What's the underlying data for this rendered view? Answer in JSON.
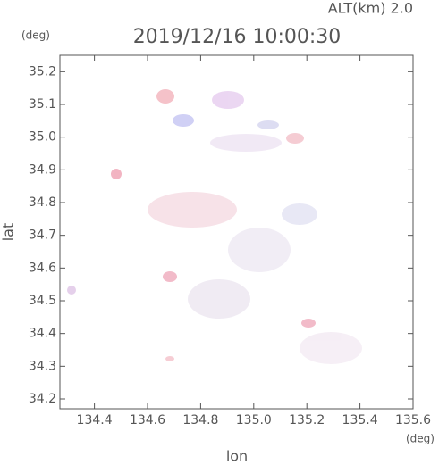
{
  "chart_data": {
    "type": "map",
    "title": "2019/12/16 10:00:30",
    "subtitle": "ALT(km) 2.0",
    "x_label": "lon",
    "x_unit": "(deg)",
    "y_label": "lat",
    "y_unit": "(deg)",
    "xlim": [
      134.27,
      135.6
    ],
    "xticks": [
      134.4,
      134.6,
      134.8,
      {
        "value": 135,
        "label": "135.0"
      },
      135.2,
      135.4,
      135.6
    ],
    "ylim": [
      34.17,
      35.25
    ],
    "yticks": [
      34.2,
      34.3,
      34.4,
      34.5,
      34.6,
      34.7,
      34.8,
      34.9,
      {
        "value": 35,
        "label": "35.0"
      },
      35.1,
      35.2
    ]
  }
}
